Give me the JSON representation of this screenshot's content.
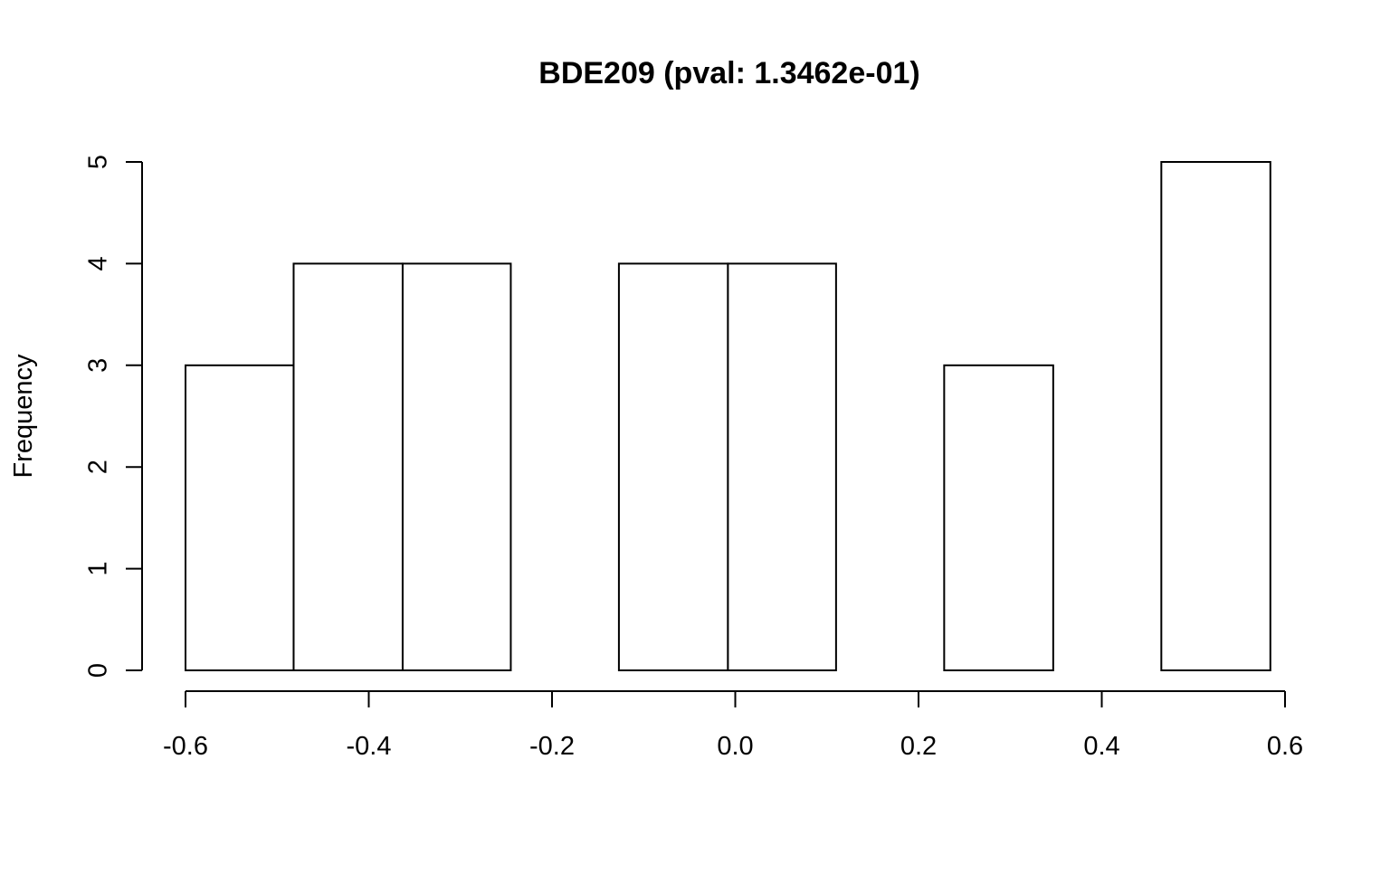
{
  "chart_data": {
    "type": "bar",
    "subtype": "histogram",
    "title": "BDE209 (pval: 1.3462e-01)",
    "xlabel": "",
    "ylabel": "Frequency",
    "xlim": [
      -0.6,
      0.6
    ],
    "ylim": [
      0,
      5
    ],
    "x_ticks": [
      "-0.6",
      "-0.4",
      "-0.2",
      "0.0",
      "0.2",
      "0.4",
      "0.6"
    ],
    "y_ticks": [
      "0",
      "1",
      "2",
      "3",
      "4",
      "5"
    ],
    "bins": [
      {
        "start": -0.6,
        "end": -0.482,
        "count": 3
      },
      {
        "start": -0.482,
        "end": -0.363,
        "count": 4
      },
      {
        "start": -0.363,
        "end": -0.245,
        "count": 4
      },
      {
        "start": -0.245,
        "end": -0.127,
        "count": 0
      },
      {
        "start": -0.127,
        "end": -0.008,
        "count": 4
      },
      {
        "start": -0.008,
        "end": 0.11,
        "count": 4
      },
      {
        "start": 0.11,
        "end": 0.228,
        "count": 0
      },
      {
        "start": 0.228,
        "end": 0.347,
        "count": 3
      },
      {
        "start": 0.347,
        "end": 0.465,
        "count": 0
      },
      {
        "start": 0.465,
        "end": 0.584,
        "count": 5
      }
    ],
    "grid": false,
    "colors": {
      "bar_fill": "#ffffff",
      "bar_stroke": "#000000",
      "background": "#ffffff"
    }
  }
}
